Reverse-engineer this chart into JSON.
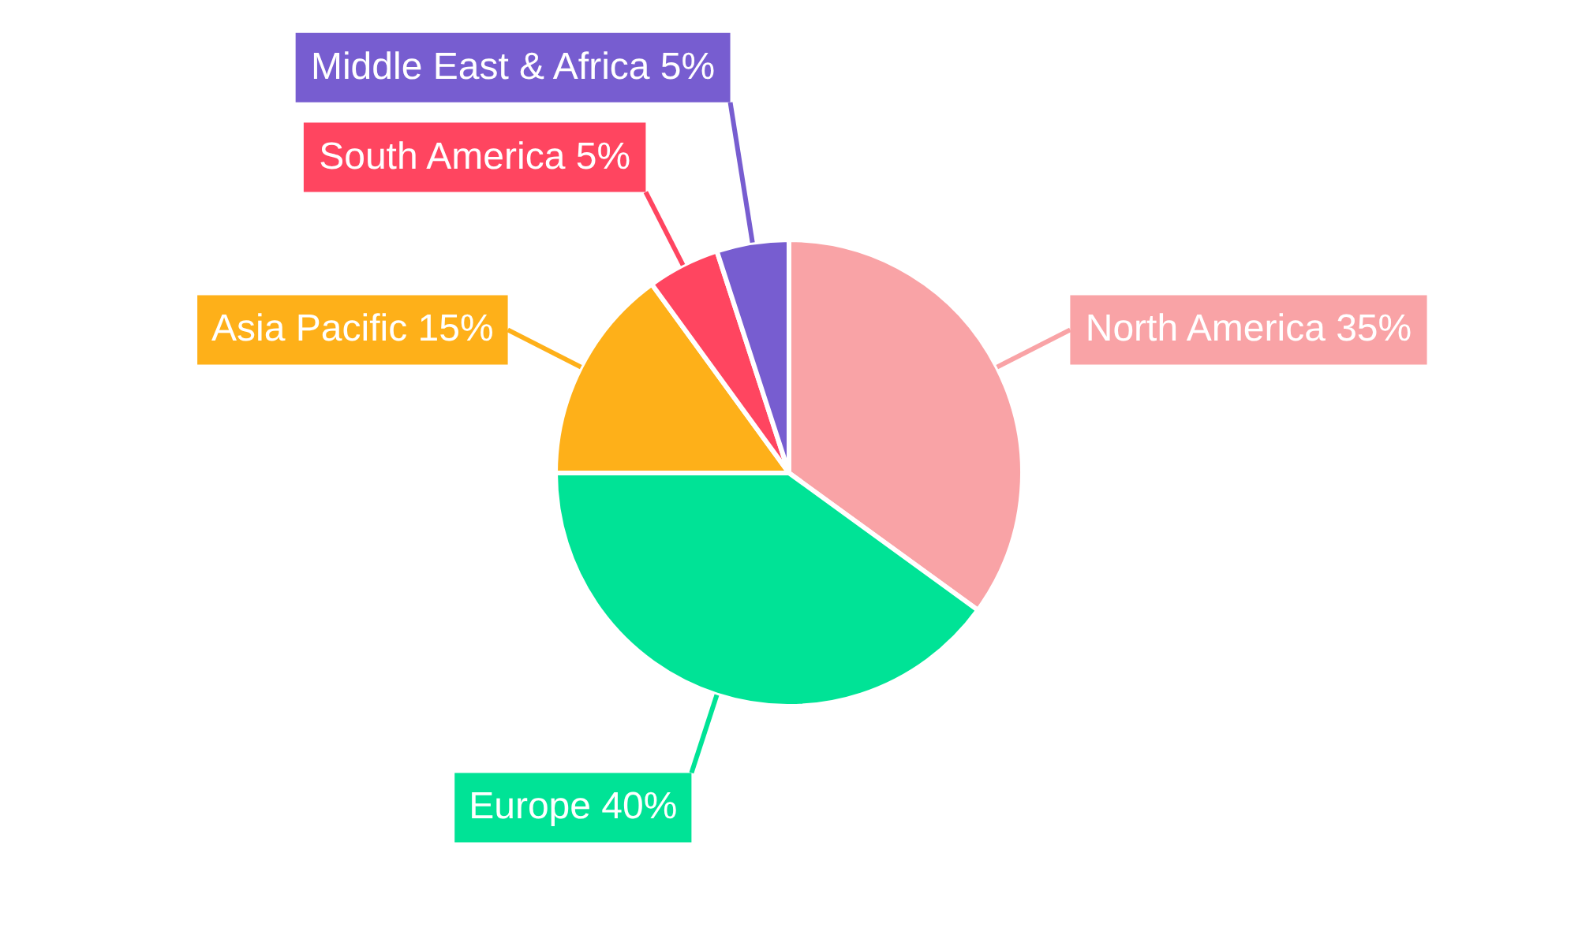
{
  "chart_data": {
    "type": "pie",
    "categories": [
      "North America",
      "Europe",
      "Asia Pacific",
      "South America",
      "Middle East & Africa"
    ],
    "values": [
      35,
      40,
      15,
      5,
      5
    ],
    "colors": [
      "#f9a3a6",
      "#00e396",
      "#feb019",
      "#ff4560",
      "#775dd0"
    ],
    "value_labels": [
      "35%",
      "40%",
      "15%",
      "5%",
      "5%"
    ]
  }
}
